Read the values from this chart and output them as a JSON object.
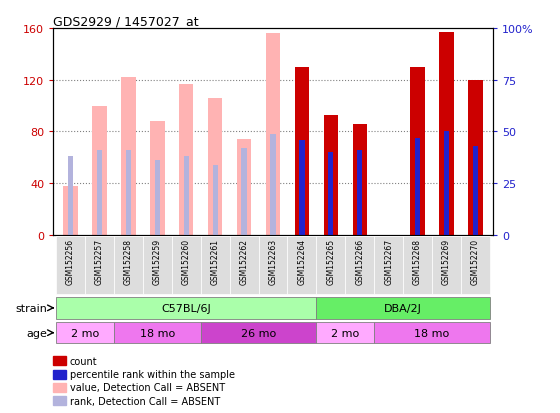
{
  "title": "GDS2929 / 1457027_at",
  "samples": [
    "GSM152256",
    "GSM152257",
    "GSM152258",
    "GSM152259",
    "GSM152260",
    "GSM152261",
    "GSM152262",
    "GSM152263",
    "GSM152264",
    "GSM152265",
    "GSM152266",
    "GSM152267",
    "GSM152268",
    "GSM152269",
    "GSM152270"
  ],
  "absent": [
    true,
    true,
    true,
    true,
    true,
    true,
    true,
    true,
    false,
    false,
    false,
    false,
    false,
    false,
    false
  ],
  "count_values": [
    0,
    0,
    0,
    0,
    0,
    0,
    0,
    0,
    130,
    93,
    86,
    0,
    130,
    157,
    120
  ],
  "rank_values_pct": [
    0,
    0,
    0,
    0,
    0,
    0,
    0,
    0,
    46,
    40,
    41,
    0,
    47,
    50,
    43
  ],
  "absent_value": [
    38,
    100,
    122,
    88,
    117,
    106,
    74,
    156,
    0,
    0,
    0,
    0,
    0,
    0,
    0
  ],
  "absent_rank_pct": [
    38,
    41,
    41,
    36,
    38,
    34,
    42,
    49,
    0,
    0,
    0,
    0,
    0,
    0,
    0
  ],
  "ylim_left": [
    0,
    160
  ],
  "ylim_right": [
    0,
    100
  ],
  "yticks_left": [
    0,
    40,
    80,
    120,
    160
  ],
  "yticks_right": [
    0,
    25,
    50,
    75,
    100
  ],
  "bar_color_count": "#cc0000",
  "bar_color_rank": "#2222cc",
  "bar_color_absent_val": "#ffb3b3",
  "bar_color_absent_rank": "#b3b3dd",
  "strain_groups": [
    {
      "label": "C57BL/6J",
      "start": 0,
      "end": 8,
      "color": "#aaffaa"
    },
    {
      "label": "DBA/2J",
      "start": 9,
      "end": 14,
      "color": "#66ee66"
    }
  ],
  "age_groups": [
    {
      "label": "2 mo",
      "start": 0,
      "end": 1,
      "color": "#ffaaff"
    },
    {
      "label": "18 mo",
      "start": 2,
      "end": 4,
      "color": "#ee77ee"
    },
    {
      "label": "26 mo",
      "start": 5,
      "end": 8,
      "color": "#cc44cc"
    },
    {
      "label": "2 mo",
      "start": 9,
      "end": 10,
      "color": "#ffaaff"
    },
    {
      "label": "18 mo",
      "start": 11,
      "end": 14,
      "color": "#ee77ee"
    }
  ],
  "legend_items": [
    {
      "label": "count",
      "color": "#cc0000"
    },
    {
      "label": "percentile rank within the sample",
      "color": "#2222cc"
    },
    {
      "label": "value, Detection Call = ABSENT",
      "color": "#ffb3b3"
    },
    {
      "label": "rank, Detection Call = ABSENT",
      "color": "#b3b3dd"
    }
  ]
}
